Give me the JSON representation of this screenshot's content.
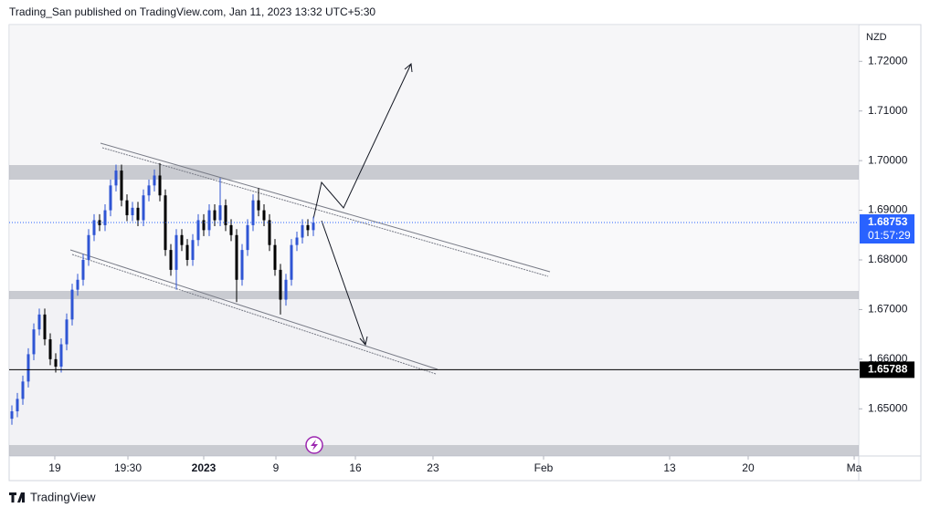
{
  "header": {
    "title": "Trading_San published on TradingView.com, Jan 11, 2023 13:32 UTC+5:30"
  },
  "footer": {
    "brand": "TradingView"
  },
  "chart_data": {
    "type": "candlestick",
    "currency": "NZD",
    "up_color": "#2f55d4",
    "down_color": "#000000",
    "ylim": [
      1.6405,
      1.7274
    ],
    "yticks": [
      {
        "value": 1.72,
        "label": "1.72000"
      },
      {
        "value": 1.71,
        "label": "1.71000"
      },
      {
        "value": 1.7,
        "label": "1.70000"
      },
      {
        "value": 1.69,
        "label": "1.69000"
      },
      {
        "value": 1.68,
        "label": "1.68000"
      },
      {
        "value": 1.67,
        "label": "1.67000"
      },
      {
        "value": 1.66,
        "label": "1.66000"
      },
      {
        "value": 1.65,
        "label": "1.65000"
      }
    ],
    "xlim": [
      0,
      155
    ],
    "xticks": [
      {
        "value": 8.33,
        "label": "19"
      },
      {
        "value": 21.67,
        "label": "19:30"
      },
      {
        "value": 35.5,
        "label": "2023"
      },
      {
        "value": 48.67,
        "label": "9"
      },
      {
        "value": 63.17,
        "label": "16"
      },
      {
        "value": 77.33,
        "label": "23"
      },
      {
        "value": 97.5,
        "label": "Feb"
      },
      {
        "value": 120.5,
        "label": "13"
      },
      {
        "value": 134.83,
        "label": "20"
      },
      {
        "value": 154.17,
        "label": "Ma"
      }
    ],
    "open": [
      1.648,
      1.6495,
      1.652,
      1.6555,
      1.661,
      1.666,
      1.669,
      1.664,
      1.66,
      1.6585,
      1.663,
      1.668,
      1.674,
      1.676,
      1.68,
      1.685,
      1.688,
      1.687,
      1.69,
      1.695,
      1.698,
      1.692,
      1.689,
      1.6905,
      1.688,
      1.693,
      1.695,
      1.697,
      1.693,
      1.682,
      1.678,
      1.685,
      1.683,
      1.68,
      1.684,
      1.688,
      1.686,
      1.69,
      1.688,
      1.691,
      1.687,
      1.685,
      1.676,
      1.682,
      1.687,
      1.692,
      1.69,
      1.688,
      1.683,
      1.678,
      1.672,
      1.676,
      1.683,
      1.6845,
      1.687,
      1.686
    ],
    "high": [
      1.6507,
      1.6532,
      1.6567,
      1.6622,
      1.6672,
      1.6702,
      1.6702,
      1.6652,
      1.6612,
      1.6642,
      1.6692,
      1.6752,
      1.6772,
      1.6812,
      1.6862,
      1.6892,
      1.6892,
      1.6912,
      1.6962,
      1.6992,
      1.6992,
      1.6932,
      1.6917,
      1.6917,
      1.6942,
      1.6962,
      1.6982,
      1.6995,
      1.6942,
      1.6832,
      1.6862,
      1.6862,
      1.6842,
      1.6852,
      1.6892,
      1.6892,
      1.6912,
      1.6912,
      1.6965,
      1.6922,
      1.6882,
      1.6862,
      1.6832,
      1.6882,
      1.6932,
      1.6945,
      1.6912,
      1.6892,
      1.6842,
      1.6792,
      1.6772,
      1.6842,
      1.6857,
      1.6882,
      1.6882,
      1.6887
    ],
    "low": [
      1.6468,
      1.6483,
      1.6508,
      1.6543,
      1.6598,
      1.6648,
      1.6628,
      1.6588,
      1.6573,
      1.6573,
      1.6618,
      1.6668,
      1.6728,
      1.6748,
      1.6788,
      1.6838,
      1.6858,
      1.6858,
      1.6888,
      1.6938,
      1.6908,
      1.6878,
      1.6878,
      1.6868,
      1.6868,
      1.6918,
      1.6938,
      1.6918,
      1.6808,
      1.6768,
      1.674,
      1.6818,
      1.6788,
      1.6788,
      1.6828,
      1.6848,
      1.6848,
      1.6868,
      1.6868,
      1.6858,
      1.6838,
      1.6715,
      1.6748,
      1.6808,
      1.6858,
      1.6888,
      1.6868,
      1.6818,
      1.6768,
      1.669,
      1.6708,
      1.6748,
      1.6818,
      1.6833,
      1.6848,
      1.6848
    ],
    "close": [
      1.6495,
      1.652,
      1.6555,
      1.661,
      1.666,
      1.669,
      1.664,
      1.66,
      1.6585,
      1.663,
      1.668,
      1.674,
      1.676,
      1.68,
      1.685,
      1.688,
      1.687,
      1.69,
      1.695,
      1.698,
      1.692,
      1.689,
      1.6905,
      1.688,
      1.693,
      1.695,
      1.697,
      1.693,
      1.682,
      1.678,
      1.685,
      1.683,
      1.68,
      1.684,
      1.688,
      1.686,
      1.69,
      1.688,
      1.691,
      1.687,
      1.685,
      1.676,
      1.682,
      1.687,
      1.692,
      1.69,
      1.688,
      1.683,
      1.678,
      1.672,
      1.676,
      1.683,
      1.6845,
      1.687,
      1.686,
      1.6875
    ],
    "current_price": {
      "value": 1.68753,
      "label": "1.68753",
      "countdown": "01:57:29",
      "color": "#2962ff"
    },
    "level_line": {
      "value": 1.65788,
      "label": "1.65788",
      "color": "#000000"
    }
  }
}
